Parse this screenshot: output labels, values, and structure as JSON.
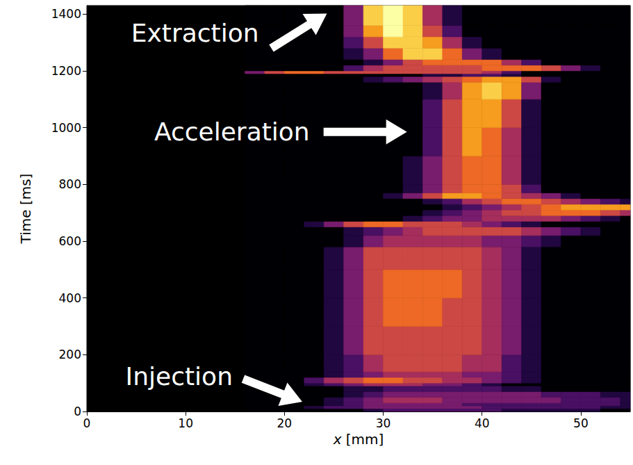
{
  "chart_data": {
    "type": "heatmap",
    "xlabel": "x [mm]",
    "ylabel": "Time [ms]",
    "xlim": [
      0,
      55
    ],
    "ylim": [
      0,
      1430
    ],
    "xticks": [
      0,
      10,
      20,
      30,
      40,
      50
    ],
    "yticks": [
      0,
      200,
      400,
      600,
      800,
      1000,
      1200,
      1400
    ],
    "x_edges": [
      16,
      18,
      20,
      22,
      24,
      26,
      28,
      30,
      32,
      34,
      36,
      38,
      40,
      42,
      44,
      46,
      48,
      50,
      52,
      54,
      56
    ],
    "y_edges": [
      0,
      10,
      20,
      30,
      50,
      70,
      90,
      100,
      120,
      140,
      200,
      300,
      400,
      500,
      580,
      620,
      650,
      670,
      690,
      710,
      730,
      750,
      770,
      800,
      900,
      1000,
      1100,
      1160,
      1180,
      1190,
      1200,
      1220,
      1240,
      1280,
      1320,
      1360,
      1430
    ],
    "cells": [
      [
        0,
        0,
        0,
        0,
        0,
        0,
        1,
        2,
        2,
        2,
        2,
        2,
        2,
        1,
        1,
        1,
        1,
        1,
        0,
        0
      ],
      [
        0,
        0,
        0,
        1,
        2,
        2,
        3,
        3,
        3,
        3,
        3,
        3,
        2,
        2,
        2,
        2,
        2,
        2,
        1,
        1
      ],
      [
        0,
        0,
        0,
        0,
        1,
        2,
        3,
        3,
        3,
        3,
        3,
        2,
        2,
        2,
        2,
        2,
        2,
        2,
        2,
        1
      ],
      [
        0,
        0,
        0,
        0,
        1,
        2,
        3,
        4,
        4,
        4,
        3,
        3,
        3,
        3,
        3,
        3,
        2,
        2,
        2,
        1
      ],
      [
        0,
        0,
        0,
        0,
        0,
        1,
        2,
        3,
        3,
        3,
        3,
        3,
        3,
        3,
        3,
        2,
        2,
        2,
        1,
        1
      ],
      [
        0,
        0,
        0,
        0,
        0,
        1,
        1,
        2,
        2,
        2,
        2,
        2,
        2,
        1,
        1,
        0,
        0,
        0,
        0,
        0
      ],
      [
        0,
        0,
        0,
        1,
        2,
        3,
        4,
        4,
        4,
        3,
        3,
        2,
        1,
        0,
        0,
        0,
        0,
        0,
        0,
        0
      ],
      [
        0,
        0,
        0,
        2,
        4,
        5,
        6,
        6,
        5,
        5,
        4,
        4,
        3,
        2,
        1,
        0,
        0,
        0,
        0,
        0
      ],
      [
        0,
        0,
        0,
        0,
        1,
        2,
        3,
        4,
        4,
        4,
        4,
        3,
        3,
        2,
        1,
        0,
        0,
        0,
        0,
        0
      ],
      [
        0,
        0,
        0,
        0,
        1,
        2,
        4,
        5,
        5,
        5,
        5,
        4,
        4,
        2,
        1,
        0,
        0,
        0,
        0,
        0
      ],
      [
        0,
        0,
        0,
        0,
        1,
        3,
        5,
        5,
        5,
        5,
        5,
        5,
        4,
        3,
        1,
        0,
        0,
        0,
        0,
        0
      ],
      [
        0,
        0,
        0,
        0,
        1,
        3,
        5,
        6,
        6,
        6,
        5,
        5,
        4,
        3,
        1,
        0,
        0,
        0,
        0,
        0
      ],
      [
        0,
        0,
        0,
        0,
        1,
        3,
        5,
        6,
        6,
        6,
        6,
        5,
        4,
        3,
        1,
        0,
        0,
        0,
        0,
        0
      ],
      [
        0,
        0,
        0,
        0,
        1,
        3,
        5,
        5,
        5,
        5,
        5,
        5,
        4,
        3,
        1,
        0,
        0,
        0,
        0,
        0
      ],
      [
        0,
        0,
        0,
        0,
        0,
        1,
        3,
        4,
        4,
        4,
        4,
        4,
        3,
        3,
        2,
        1,
        0,
        0,
        0,
        0
      ],
      [
        0,
        0,
        0,
        0,
        0,
        1,
        2,
        3,
        4,
        5,
        5,
        5,
        5,
        5,
        4,
        3,
        2,
        1,
        0,
        0
      ],
      [
        0,
        0,
        0,
        1,
        3,
        5,
        6,
        6,
        5,
        5,
        5,
        4,
        3,
        2,
        1,
        0,
        0,
        0,
        0,
        0
      ],
      [
        0,
        0,
        0,
        0,
        0,
        0,
        0,
        0,
        1,
        2,
        3,
        3,
        4,
        4,
        4,
        4,
        3,
        2,
        1,
        0
      ],
      [
        0,
        0,
        0,
        0,
        0,
        0,
        0,
        0,
        0,
        1,
        2,
        3,
        4,
        5,
        5,
        6,
        6,
        6,
        5,
        4
      ],
      [
        0,
        0,
        0,
        0,
        0,
        0,
        0,
        0,
        0,
        0,
        1,
        2,
        3,
        4,
        5,
        6,
        7,
        7,
        7,
        7
      ],
      [
        0,
        0,
        0,
        0,
        0,
        0,
        0,
        0,
        0,
        1,
        2,
        4,
        5,
        6,
        6,
        5,
        4,
        3,
        2,
        1
      ],
      [
        0,
        0,
        0,
        0,
        0,
        0,
        0,
        1,
        3,
        5,
        7,
        7,
        6,
        5,
        4,
        3,
        1,
        0,
        0,
        0
      ],
      [
        0,
        0,
        0,
        0,
        0,
        0,
        0,
        0,
        1,
        3,
        5,
        6,
        6,
        5,
        2,
        0,
        0,
        0,
        0,
        0
      ],
      [
        0,
        0,
        0,
        0,
        0,
        0,
        0,
        0,
        1,
        3,
        5,
        6,
        6,
        4,
        1,
        0,
        0,
        0,
        0,
        0
      ],
      [
        0,
        0,
        0,
        0,
        0,
        0,
        0,
        0,
        0,
        2,
        5,
        7,
        6,
        4,
        1,
        0,
        0,
        0,
        0,
        0
      ],
      [
        0,
        0,
        0,
        0,
        0,
        0,
        0,
        0,
        0,
        2,
        5,
        7,
        7,
        5,
        1,
        0,
        0,
        0,
        0,
        0
      ],
      [
        0,
        0,
        0,
        0,
        0,
        0,
        0,
        0,
        0,
        1,
        4,
        7,
        8,
        7,
        3,
        0,
        0,
        0,
        0,
        0
      ],
      [
        0,
        0,
        0,
        0,
        0,
        0,
        1,
        2,
        3,
        4,
        5,
        6,
        7,
        7,
        5,
        1,
        0,
        0,
        0,
        0
      ],
      [
        0,
        0,
        0,
        0,
        0,
        0,
        0,
        0,
        0,
        1,
        1,
        2,
        2,
        1,
        0,
        0,
        0,
        0,
        0,
        0
      ],
      [
        3,
        5,
        6,
        6,
        5,
        5,
        5,
        5,
        5,
        5,
        5,
        5,
        4,
        2,
        0,
        0,
        0,
        0,
        0,
        0
      ],
      [
        0,
        0,
        0,
        0,
        0,
        2,
        4,
        5,
        5,
        5,
        5,
        5,
        6,
        6,
        6,
        5,
        3,
        1,
        0,
        0
      ],
      [
        0,
        0,
        0,
        0,
        0,
        0,
        1,
        3,
        5,
        6,
        6,
        6,
        6,
        4,
        2,
        0,
        0,
        0,
        0,
        0
      ],
      [
        0,
        0,
        0,
        0,
        0,
        1,
        3,
        6,
        8,
        8,
        6,
        3,
        1,
        0,
        0,
        0,
        0,
        0,
        0,
        0
      ],
      [
        0,
        0,
        0,
        0,
        0,
        2,
        5,
        8,
        8,
        7,
        4,
        1,
        0,
        0,
        0,
        0,
        0,
        0,
        0,
        0
      ],
      [
        0,
        0,
        0,
        0,
        0,
        3,
        7,
        9,
        8,
        5,
        2,
        0,
        0,
        0,
        0,
        0,
        0,
        0,
        0,
        0
      ],
      [
        0,
        0,
        0,
        0,
        0,
        3,
        8,
        9,
        8,
        4,
        1,
        0,
        0,
        0,
        0,
        0,
        0,
        0,
        0,
        0
      ]
    ],
    "annotations": [
      {
        "text": "Extraction",
        "x": 24.3,
        "y": 1402
      },
      {
        "text": "Acceleration",
        "x": 32.4,
        "y": 985
      },
      {
        "text": "Injection",
        "x": 21.8,
        "y": 34
      }
    ]
  }
}
